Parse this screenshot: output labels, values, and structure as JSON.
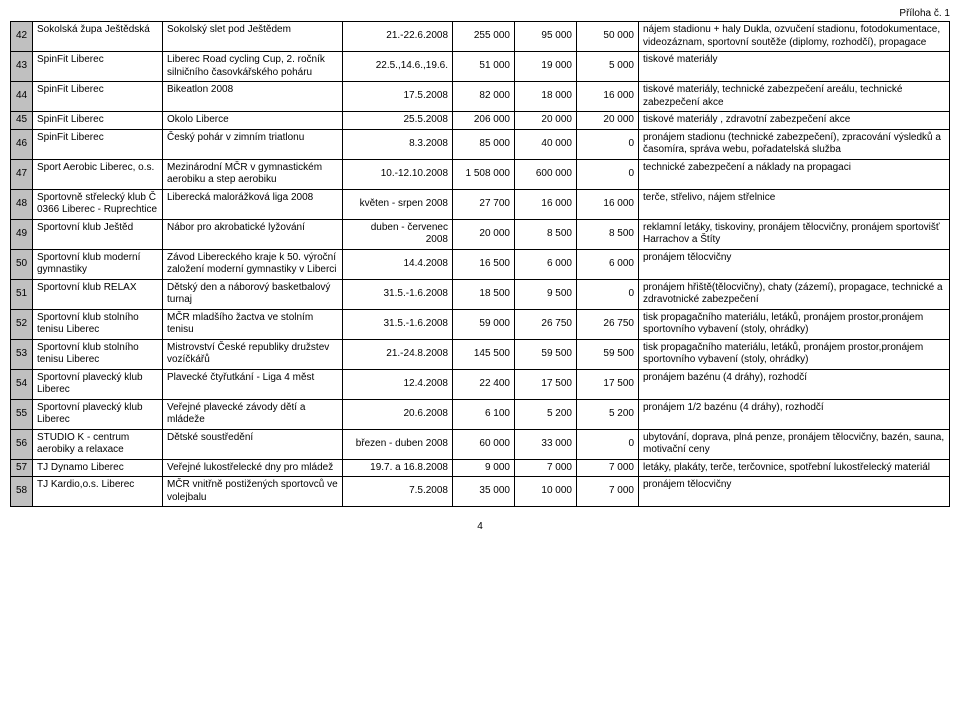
{
  "header_note": "Příloha č. 1",
  "page_number": "4",
  "columns": [
    "num",
    "organization",
    "event",
    "date",
    "amount1",
    "amount2",
    "amount3",
    "description"
  ],
  "rows": [
    {
      "num": "42",
      "organization": "Sokolská župa Ještědská",
      "event": "Sokolský slet pod Ještědem",
      "date": "21.-22.6.2008",
      "amount1": "255 000",
      "amount2": "95 000",
      "amount3": "50 000",
      "description": "nájem stadionu + haly Dukla, ozvučení stadionu, fotodokumentace, videozáznam, sportovní soutěže (diplomy, rozhodčí), propagace"
    },
    {
      "num": "43",
      "organization": "SpinFit Liberec",
      "event": "Liberec Road cycling Cup, 2. ročník silničního časovkářského poháru",
      "date": "22.5.,14.6.,19.6.",
      "amount1": "51 000",
      "amount2": "19 000",
      "amount3": "5 000",
      "description": "tiskové materiály"
    },
    {
      "num": "44",
      "organization": "SpinFit Liberec",
      "event": "Bikeatlon 2008",
      "date": "17.5.2008",
      "amount1": "82 000",
      "amount2": "18 000",
      "amount3": "16 000",
      "description": "tiskové materiály, technické zabezpečení areálu, technické zabezpečení akce"
    },
    {
      "num": "45",
      "organization": "SpinFit Liberec",
      "event": "Okolo Liberce",
      "date": "25.5.2008",
      "amount1": "206 000",
      "amount2": "20 000",
      "amount3": "20 000",
      "description": "tiskové materiály , zdravotní zabezpečení akce"
    },
    {
      "num": "46",
      "organization": "SpinFit Liberec",
      "event": "Český pohár v zimním triatlonu",
      "date": "8.3.2008",
      "amount1": "85 000",
      "amount2": "40 000",
      "amount3": "0",
      "description": "pronájem stadionu (technické zabezpečení), zpracování výsledků a časomíra, správa webu, pořadatelská služba"
    },
    {
      "num": "47",
      "organization": "Sport Aerobic Liberec, o.s.",
      "event": "Mezinárodní MČR v gymnastickém aerobiku a step aerobiku",
      "date": "10.-12.10.2008",
      "amount1": "1 508 000",
      "amount2": "600 000",
      "amount3": "0",
      "description": "technické zabezpečení a náklady na propagaci"
    },
    {
      "num": "48",
      "organization": "Sportovně střelecký klub Č 0366 Liberec - Ruprechtice",
      "event": "Liberecká malorážková liga 2008",
      "date": "květen - srpen 2008",
      "amount1": "27 700",
      "amount2": "16 000",
      "amount3": "16 000",
      "description": "terče, střelivo, nájem střelnice"
    },
    {
      "num": "49",
      "organization": "Sportovní klub Ještěd",
      "event": "Nábor pro akrobatické lyžování",
      "date": "duben - červenec 2008",
      "amount1": "20 000",
      "amount2": "8 500",
      "amount3": "8 500",
      "description": "reklamní letáky, tiskoviny, pronájem tělocvičny, pronájem sportovišť Harrachov a Štíty"
    },
    {
      "num": "50",
      "organization": "Sportovní klub moderní gymnastiky",
      "event": "Závod Libereckého kraje k 50. výroční založení moderní gymnastiky v Liberci",
      "date": "14.4.2008",
      "amount1": "16 500",
      "amount2": "6 000",
      "amount3": "6 000",
      "description": "pronájem tělocvičny"
    },
    {
      "num": "51",
      "organization": "Sportovní klub RELAX",
      "event": "Dětský den a náborový basketbalový turnaj",
      "date": "31.5.-1.6.2008",
      "amount1": "18 500",
      "amount2": "9 500",
      "amount3": "0",
      "description": "pronájem hřiště(tělocvičny), chaty (zázemí), propagace, technické a zdravotnické zabezpečení"
    },
    {
      "num": "52",
      "organization": "Sportovní klub stolního tenisu Liberec",
      "event": "MČR mladšího žactva ve stolním tenisu",
      "date": "31.5.-1.6.2008",
      "amount1": "59 000",
      "amount2": "26 750",
      "amount3": "26 750",
      "description": "tisk propagačního materiálu, letáků, pronájem prostor,pronájem sportovního vybavení (stoly, ohrádky)"
    },
    {
      "num": "53",
      "organization": "Sportovní klub stolního tenisu Liberec",
      "event": "Mistrovství České republiky družstev vozíčkářů",
      "date": "21.-24.8.2008",
      "amount1": "145 500",
      "amount2": "59 500",
      "amount3": "59 500",
      "description": "tisk propagačního materiálu, letáků, pronájem prostor,pronájem sportovního vybavení (stoly, ohrádky)"
    },
    {
      "num": "54",
      "organization": "Sportovní plavecký klub Liberec",
      "event": "Plavecké čtyřutkání - Liga 4 měst",
      "date": "12.4.2008",
      "amount1": "22 400",
      "amount2": "17 500",
      "amount3": "17 500",
      "description": "pronájem bazénu (4 dráhy), rozhodčí"
    },
    {
      "num": "55",
      "organization": "Sportovní plavecký klub Liberec",
      "event": "Veřejné plavecké závody dětí a mládeže",
      "date": "20.6.2008",
      "amount1": "6 100",
      "amount2": "5 200",
      "amount3": "5 200",
      "description": "pronájem 1/2 bazénu (4 dráhy), rozhodčí"
    },
    {
      "num": "56",
      "organization": "STUDIO K - centrum aerobiky a relaxace",
      "event": "Dětské soustředění",
      "date": "březen - duben 2008",
      "amount1": "60 000",
      "amount2": "33 000",
      "amount3": "0",
      "description": "ubytování, doprava, plná penze, pronájem tělocvičny, bazén, sauna, motivační ceny"
    },
    {
      "num": "57",
      "organization": "TJ Dynamo Liberec",
      "event": "Veřejné lukostřelecké dny pro mládež",
      "date": "19.7. a 16.8.2008",
      "amount1": "9 000",
      "amount2": "7 000",
      "amount3": "7 000",
      "description": "letáky, plakáty, terče, terčovnice, spotřební lukostřelecký materiál"
    },
    {
      "num": "58",
      "organization": "TJ Kardio,o.s. Liberec",
      "event": "MČR vnitřně postižených sportovců ve volejbalu",
      "date": "7.5.2008",
      "amount1": "35 000",
      "amount2": "10 000",
      "amount3": "7 000",
      "description": "pronájem tělocvičny"
    }
  ]
}
